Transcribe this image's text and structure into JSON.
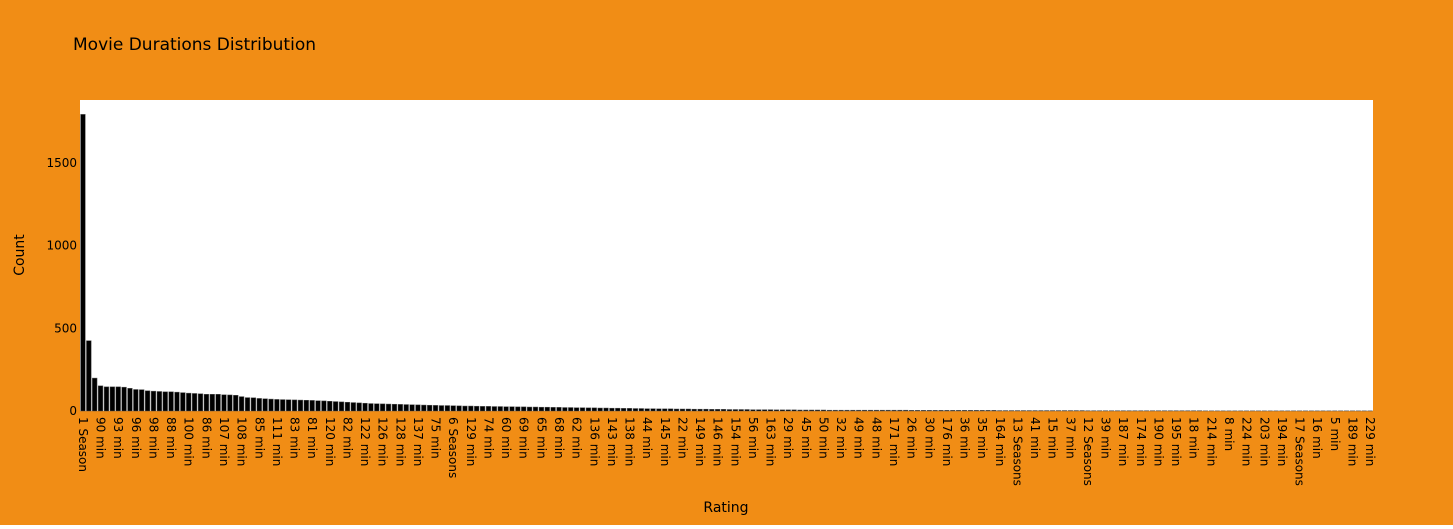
{
  "chart_data": {
    "type": "bar",
    "title": "Movie Durations Distribution",
    "x_label": "Rating",
    "y_label": "Count",
    "categories": [
      "1 Season",
      null,
      null,
      "90 min",
      null,
      null,
      "93 min",
      null,
      null,
      "96 min",
      null,
      null,
      "98 min",
      null,
      null,
      "88 min",
      null,
      null,
      "100 min",
      null,
      null,
      "86 min",
      null,
      null,
      "107 min",
      null,
      null,
      "108 min",
      null,
      null,
      "85 min",
      null,
      null,
      "111 min",
      null,
      null,
      "83 min",
      null,
      null,
      "81 min",
      null,
      null,
      "120 min",
      null,
      null,
      "82 min",
      null,
      null,
      "122 min",
      null,
      null,
      "126 min",
      null,
      null,
      "128 min",
      null,
      null,
      "137 min",
      null,
      null,
      "75 min",
      null,
      null,
      "6 Seasons",
      null,
      null,
      "129 min",
      null,
      null,
      "74 min",
      null,
      null,
      "60 min",
      null,
      null,
      "69 min",
      null,
      null,
      "65 min",
      null,
      null,
      "68 min",
      null,
      null,
      "62 min",
      null,
      null,
      "136 min",
      null,
      null,
      "143 min",
      null,
      null,
      "138 min",
      null,
      null,
      "44 min",
      null,
      null,
      "145 min",
      null,
      null,
      "22 min",
      null,
      null,
      "149 min",
      null,
      null,
      "146 min",
      null,
      null,
      "154 min",
      null,
      null,
      "56 min",
      null,
      null,
      "163 min",
      null,
      null,
      "29 min",
      null,
      null,
      "45 min",
      null,
      null,
      "50 min",
      null,
      null,
      "32 min",
      null,
      null,
      "49 min",
      null,
      null,
      "48 min",
      null,
      null,
      "171 min",
      null,
      null,
      "26 min",
      null,
      null,
      "30 min",
      null,
      null,
      "176 min",
      null,
      null,
      "36 min",
      null,
      null,
      "35 min",
      null,
      null,
      "164 min",
      null,
      null,
      "13 Seasons",
      null,
      null,
      "41 min",
      null,
      null,
      "15 min",
      null,
      null,
      "37 min",
      null,
      null,
      "12 Seasons",
      null,
      null,
      "39 min",
      null,
      null,
      "187 min",
      null,
      null,
      "174 min",
      null,
      null,
      "190 min",
      null,
      null,
      "195 min",
      null,
      null,
      "18 min",
      null,
      null,
      "214 min",
      null,
      null,
      "8 min",
      null,
      null,
      "224 min",
      null,
      null,
      "203 min",
      null,
      null,
      "194 min",
      null,
      null,
      "17 Seasons",
      null,
      null,
      "16 min",
      null,
      null,
      "5 min",
      null,
      null,
      "189 min",
      null,
      null,
      "229 min"
    ],
    "values": [
      1793,
      425,
      199,
      152,
      146,
      146,
      146,
      144,
      137,
      130,
      129,
      122,
      120,
      118,
      116,
      116,
      114,
      111,
      108,
      106,
      104,
      101,
      101,
      101,
      98,
      97,
      95,
      87,
      81,
      80,
      76,
      74,
      72,
      70,
      69,
      68,
      67,
      66,
      65,
      64,
      62,
      61,
      59,
      57,
      55,
      53,
      51,
      49,
      47,
      45,
      44,
      43,
      42,
      41,
      40,
      39,
      38,
      37,
      36,
      35,
      34,
      33,
      33,
      32,
      31,
      30,
      30,
      29,
      28,
      28,
      27,
      27,
      26,
      26,
      25,
      25,
      24,
      24,
      23,
      23,
      22,
      22,
      21,
      21,
      20,
      20,
      19,
      19,
      18,
      18,
      17,
      17,
      16,
      16,
      15,
      15,
      14,
      14,
      13,
      13,
      13,
      12,
      12,
      12,
      11,
      11,
      11,
      10,
      10,
      10,
      9,
      9,
      9,
      9,
      8,
      8,
      8,
      8,
      7,
      7,
      7,
      7,
      6,
      6,
      6,
      6,
      6,
      5,
      5,
      5,
      5,
      5,
      5,
      5,
      5,
      5,
      5,
      5,
      5,
      5,
      5,
      4,
      4,
      4,
      4,
      4,
      4,
      4,
      4,
      4,
      4,
      4,
      4,
      4,
      4,
      4,
      3,
      3,
      3,
      3,
      3,
      3,
      3,
      3,
      3,
      3,
      3,
      3,
      3,
      3,
      3,
      2,
      2,
      2,
      2,
      2,
      2,
      2,
      2,
      2,
      2,
      2,
      2,
      2,
      2,
      2,
      2,
      2,
      2,
      2,
      2,
      1,
      1,
      1,
      1,
      1,
      1,
      1,
      1,
      1,
      1,
      1,
      1,
      1,
      1,
      1,
      1,
      1,
      1,
      1,
      1,
      1,
      1,
      1,
      1,
      1,
      1,
      1,
      1,
      1
    ],
    "color": "#000000",
    "ylim": [
      0,
      1880
    ],
    "yticks": [
      0,
      500,
      1000,
      1500
    ],
    "grid": false
  }
}
